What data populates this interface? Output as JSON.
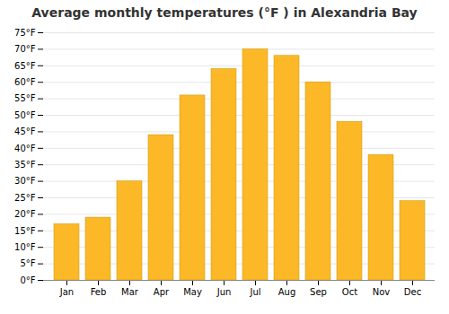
{
  "chart_data": {
    "type": "bar",
    "title": "Average monthly temperatures (°F ) in Alexandria Bay",
    "categories": [
      "Jan",
      "Feb",
      "Mar",
      "Apr",
      "May",
      "Jun",
      "Jul",
      "Aug",
      "Sep",
      "Oct",
      "Nov",
      "Dec"
    ],
    "values": [
      17,
      19,
      30,
      44,
      56,
      64,
      70,
      68,
      60,
      48,
      38,
      24
    ],
    "color": "#FDB827",
    "ylim": [
      0,
      75
    ],
    "yticks": [
      {
        "value": 0,
        "label": "0°F"
      },
      {
        "value": 5,
        "label": "5°F"
      },
      {
        "value": 10,
        "label": "10°F"
      },
      {
        "value": 15,
        "label": "15°F"
      },
      {
        "value": 20,
        "label": "20°F"
      },
      {
        "value": 25,
        "label": "25°F"
      },
      {
        "value": 30,
        "label": "30°F"
      },
      {
        "value": 35,
        "label": "35°F"
      },
      {
        "value": 40,
        "label": "40°F"
      },
      {
        "value": 45,
        "label": "45°F"
      },
      {
        "value": 50,
        "label": "50°F"
      },
      {
        "value": 55,
        "label": "55°F"
      },
      {
        "value": 60,
        "label": "60°F"
      },
      {
        "value": 65,
        "label": "65°F"
      },
      {
        "value": 70,
        "label": "70°F"
      },
      {
        "value": 75,
        "label": "75°F"
      }
    ],
    "grid": true
  }
}
